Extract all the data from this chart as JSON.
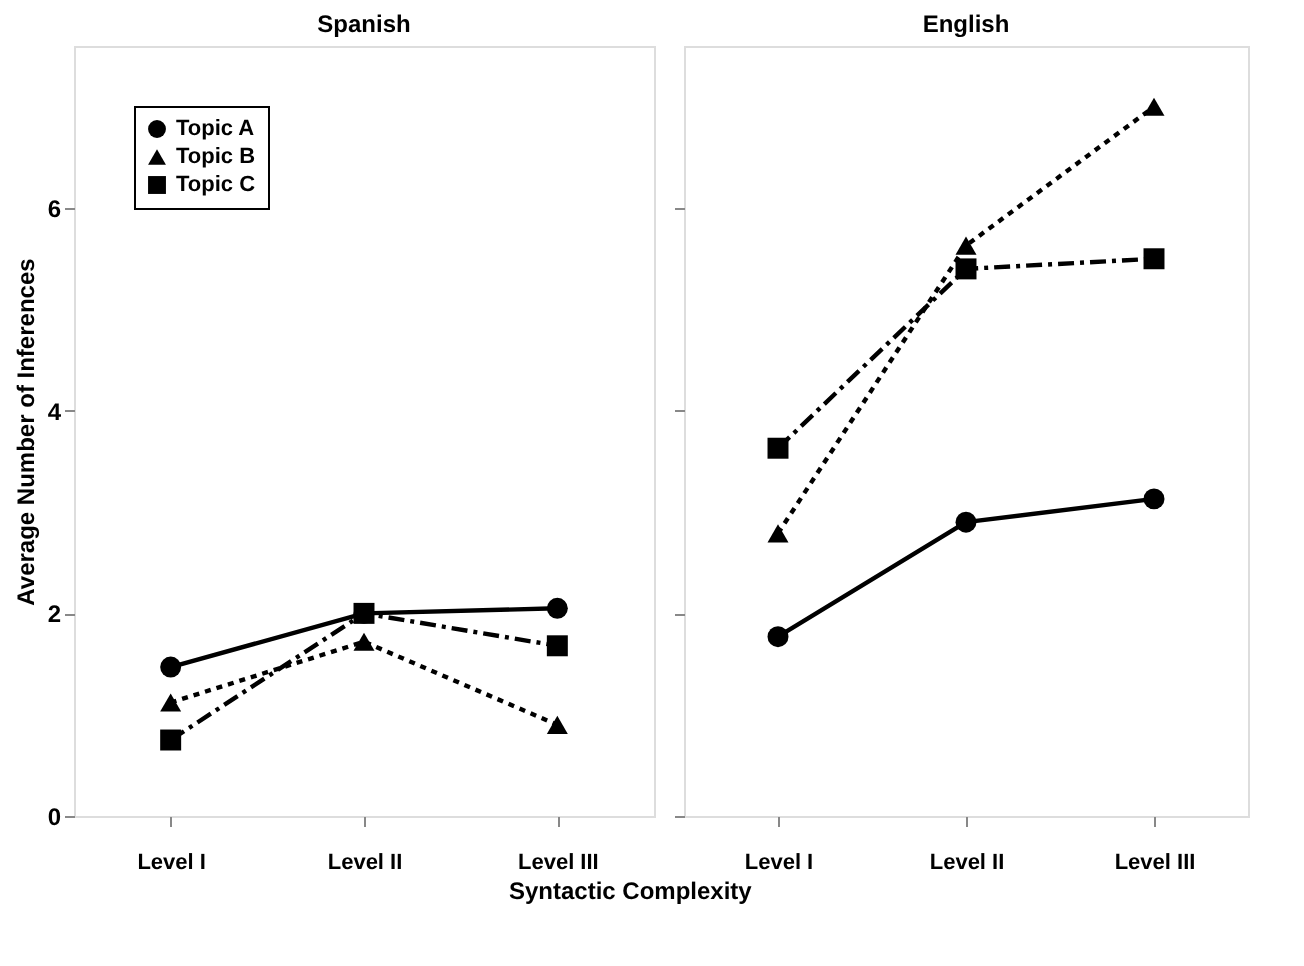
{
  "chart_data": [
    {
      "type": "line",
      "title": "Spanish",
      "ylabel": "Average Number of Inferences",
      "xlabel": "Syntactic Complexity",
      "categories": [
        "Level I",
        "Level II",
        "Level III"
      ],
      "ylim": [
        0,
        7.6
      ],
      "yticks": [
        0,
        2,
        4,
        6
      ],
      "grid": false,
      "legend": "top left",
      "series": [
        {
          "name": "Topic A",
          "color": "#000000",
          "marker": "circle",
          "line_style": "solid",
          "values": [
            1.47,
            2.0,
            2.05
          ]
        },
        {
          "name": "Topic B",
          "color": "#000000",
          "marker": "triangle",
          "line_style": "dotted",
          "values": [
            1.12,
            1.72,
            0.9
          ]
        },
        {
          "name": "Topic C",
          "color": "#000000",
          "marker": "square",
          "line_style": "dashed",
          "values": [
            0.75,
            2.0,
            1.68
          ]
        }
      ]
    },
    {
      "type": "line",
      "title": "English",
      "categories": [
        "Level I",
        "Level II",
        "Level III"
      ],
      "ylim": [
        0,
        7.6
      ],
      "yticks": [
        0,
        2,
        4,
        6
      ],
      "grid": false,
      "tick_labels": "x",
      "series": [
        {
          "color": "#000000",
          "marker": "circle",
          "line_style": "solid",
          "values": [
            1.77,
            2.9,
            3.13
          ]
        },
        {
          "color": "#000000",
          "marker": "triangle",
          "line_style": "dotted",
          "values": [
            2.79,
            5.63,
            7.0
          ]
        },
        {
          "color": "#000000",
          "marker": "square",
          "line_style": "dashed",
          "values": [
            3.63,
            5.4,
            5.5
          ]
        }
      ]
    }
  ]
}
